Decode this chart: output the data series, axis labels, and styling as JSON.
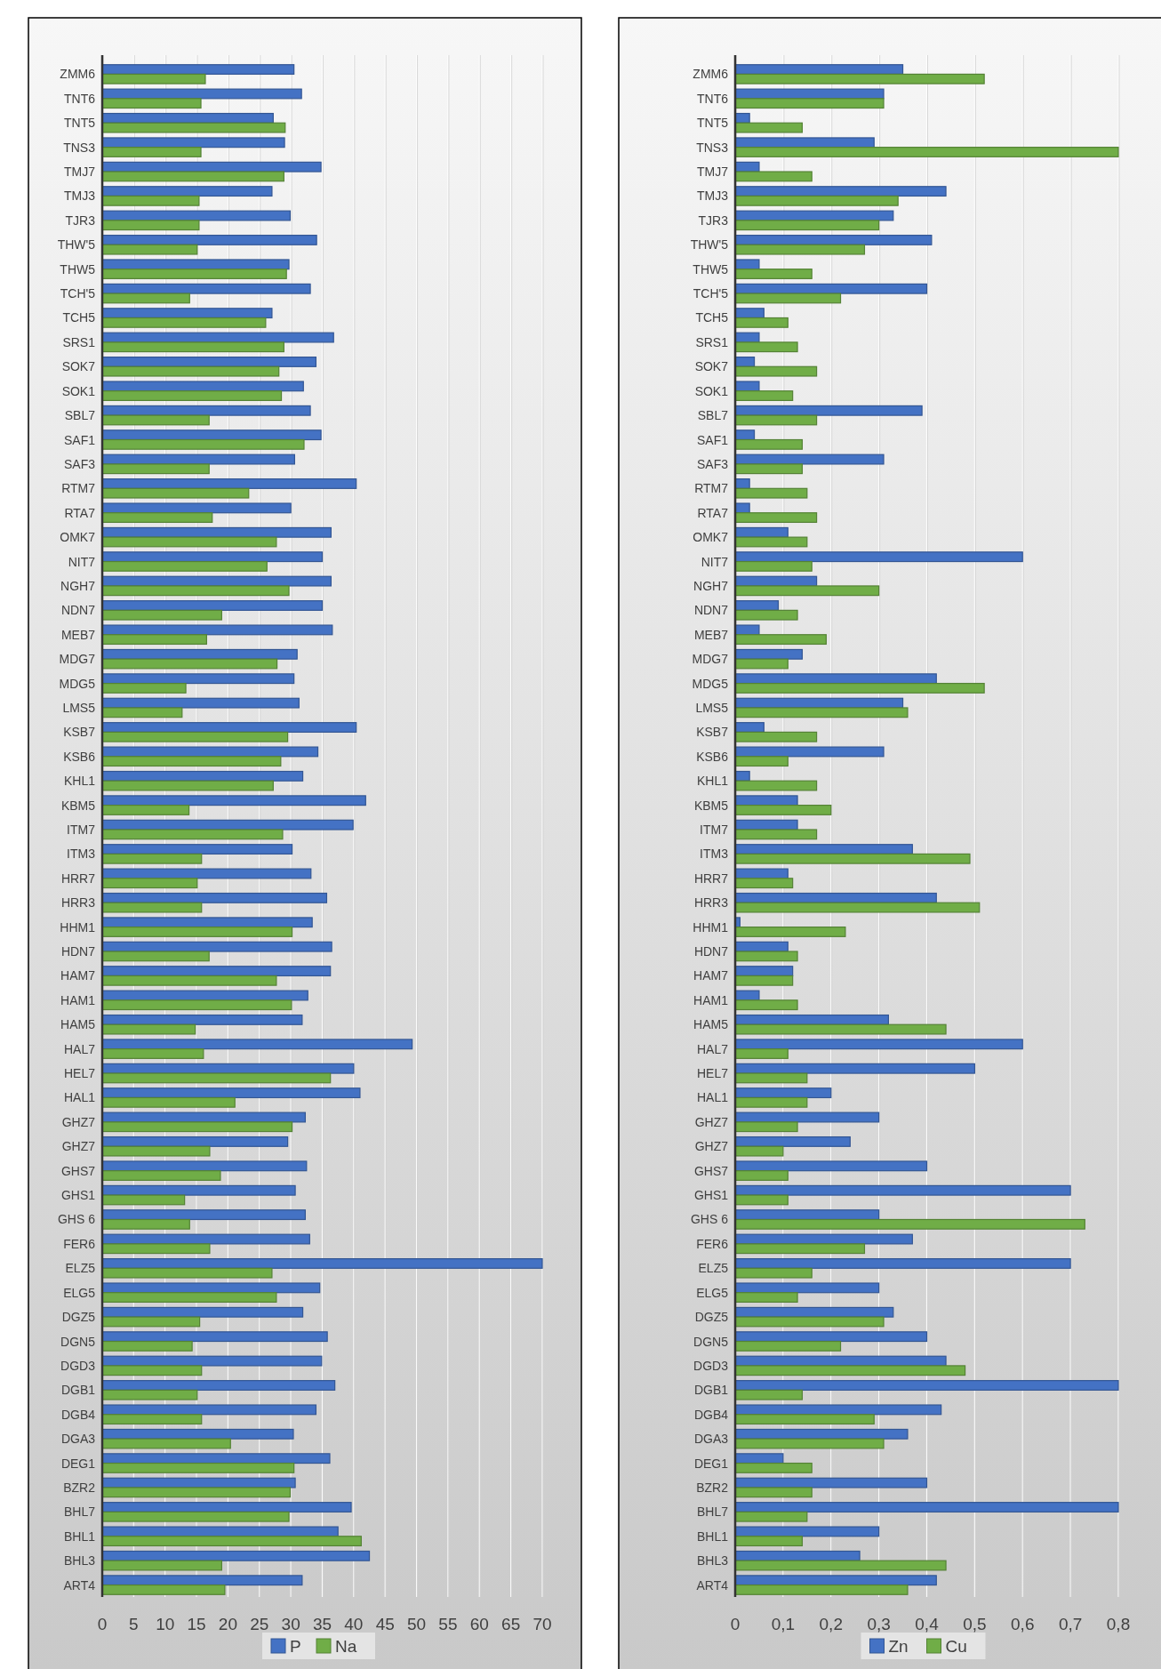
{
  "chart_data": [
    {
      "type": "bar",
      "orientation": "horizontal",
      "grid": "x",
      "legend": "bottom",
      "categories": [
        "ZMM6",
        "TNT6",
        "TNT5",
        "TNS3",
        "TMJ7",
        "TMJ3",
        "TJR3",
        "THW'5",
        "THW5",
        "TCH'5",
        "TCH5",
        "SRS1",
        "SOK7",
        "SOK1",
        "SBL7",
        "SAF1",
        "SAF3",
        "RTM7",
        "RTA7",
        "OMK7",
        "NIT7",
        "NGH7",
        "NDN7",
        "MEB7",
        "MDG7",
        "MDG5",
        "LMS5",
        "KSB7",
        "KSB6",
        "KHL1",
        "KBM5",
        "ITM7",
        "ITM3",
        "HRR7",
        "HRR3",
        "HHM1",
        "HDN7",
        "HAM7",
        "HAM1",
        "HAM5",
        "HAL7",
        "HEL7",
        "HAL1",
        "GHZ7",
        "GHZ7",
        "GHS7",
        "GHS1",
        "GHS 6",
        "FER6",
        "ELZ5",
        "ELG5",
        "DGZ5",
        "DGN5",
        "DGD3",
        "DGB1",
        "DGB4",
        "DGA3",
        "DEG1",
        "BZR2",
        "BHL7",
        "BHL1",
        "BHL3",
        "ART4"
      ],
      "series": [
        {
          "name": "P",
          "color": "#4472c4",
          "values": [
            30.5,
            31.7,
            27.2,
            29.0,
            34.8,
            27.0,
            29.9,
            34.1,
            29.7,
            33.1,
            27.0,
            36.8,
            34.0,
            32.0,
            33.1,
            34.8,
            30.6,
            40.4,
            30.0,
            36.4,
            35.0,
            36.4,
            35.0,
            36.6,
            31.0,
            30.5,
            31.3,
            40.4,
            34.3,
            31.9,
            41.9,
            39.9,
            30.2,
            33.2,
            35.7,
            33.4,
            36.5,
            36.3,
            32.7,
            31.8,
            49.3,
            40.0,
            41.0,
            32.3,
            29.5,
            32.5,
            30.7,
            32.3,
            33.0,
            70.0,
            34.6,
            31.9,
            35.8,
            34.9,
            37.0,
            34.0,
            30.4,
            36.2,
            30.7,
            39.6,
            37.5,
            42.5,
            31.8
          ]
        },
        {
          "name": "Na",
          "color": "#70ad47",
          "values": [
            16.4,
            15.7,
            29.1,
            15.7,
            28.9,
            15.4,
            15.4,
            15.1,
            29.3,
            13.9,
            26.0,
            28.9,
            28.1,
            28.5,
            17.0,
            32.1,
            17.0,
            23.3,
            17.5,
            27.7,
            26.2,
            29.7,
            19.0,
            16.6,
            27.8,
            13.3,
            12.7,
            29.5,
            28.4,
            27.2,
            13.8,
            28.7,
            15.8,
            15.1,
            15.8,
            30.2,
            17.0,
            27.7,
            30.1,
            14.8,
            16.1,
            36.3,
            21.1,
            30.2,
            17.1,
            18.8,
            13.1,
            13.9,
            17.1,
            27.0,
            27.7,
            15.5,
            14.3,
            15.8,
            15.1,
            15.8,
            20.4,
            30.5,
            29.9,
            29.7,
            41.2,
            19.0,
            19.5
          ]
        }
      ],
      "xlim": [
        0,
        70
      ],
      "xticks": [
        0,
        5,
        10,
        15,
        20,
        25,
        30,
        35,
        40,
        45,
        50,
        55,
        60,
        65,
        70
      ]
    },
    {
      "type": "bar",
      "orientation": "horizontal",
      "grid": "x",
      "legend": "bottom",
      "categories": [
        "ZMM6",
        "TNT6",
        "TNT5",
        "TNS3",
        "TMJ7",
        "TMJ3",
        "TJR3",
        "THW'5",
        "THW5",
        "TCH'5",
        "TCH5",
        "SRS1",
        "SOK7",
        "SOK1",
        "SBL7",
        "SAF1",
        "SAF3",
        "RTM7",
        "RTA7",
        "OMK7",
        "NIT7",
        "NGH7",
        "NDN7",
        "MEB7",
        "MDG7",
        "MDG5",
        "LMS5",
        "KSB7",
        "KSB6",
        "KHL1",
        "KBM5",
        "ITM7",
        "ITM3",
        "HRR7",
        "HRR3",
        "HHM1",
        "HDN7",
        "HAM7",
        "HAM1",
        "HAM5",
        "HAL7",
        "HEL7",
        "HAL1",
        "GHZ7",
        "GHZ7",
        "GHS7",
        "GHS1",
        "GHS 6",
        "FER6",
        "ELZ5",
        "ELG5",
        "DGZ5",
        "DGN5",
        "DGD3",
        "DGB1",
        "DGB4",
        "DGA3",
        "DEG1",
        "BZR2",
        "BHL7",
        "BHL1",
        "BHL3",
        "ART4"
      ],
      "series": [
        {
          "name": "Zn",
          "color": "#4472c4",
          "values": [
            0.35,
            0.31,
            0.03,
            0.29,
            0.05,
            0.44,
            0.33,
            0.41,
            0.05,
            0.4,
            0.06,
            0.05,
            0.04,
            0.05,
            0.39,
            0.04,
            0.31,
            0.03,
            0.03,
            0.11,
            0.6,
            0.17,
            0.09,
            0.05,
            0.14,
            0.42,
            0.35,
            0.06,
            0.31,
            0.03,
            0.13,
            0.13,
            0.37,
            0.11,
            0.42,
            0.01,
            0.11,
            0.12,
            0.05,
            0.32,
            0.6,
            0.5,
            0.2,
            0.3,
            0.24,
            0.4,
            0.7,
            0.3,
            0.37,
            0.7,
            0.3,
            0.33,
            0.4,
            0.44,
            0.8,
            0.43,
            0.36,
            0.1,
            0.4,
            0.8,
            0.3,
            0.26,
            0.42
          ]
        },
        {
          "name": "Cu",
          "color": "#70ad47",
          "values": [
            0.52,
            0.31,
            0.14,
            0.8,
            0.16,
            0.34,
            0.3,
            0.27,
            0.16,
            0.22,
            0.11,
            0.13,
            0.17,
            0.12,
            0.17,
            0.14,
            0.14,
            0.15,
            0.17,
            0.15,
            0.16,
            0.3,
            0.13,
            0.19,
            0.11,
            0.52,
            0.36,
            0.17,
            0.11,
            0.17,
            0.2,
            0.17,
            0.49,
            0.12,
            0.51,
            0.23,
            0.13,
            0.12,
            0.13,
            0.44,
            0.11,
            0.15,
            0.15,
            0.13,
            0.1,
            0.11,
            0.11,
            0.73,
            0.27,
            0.16,
            0.13,
            0.31,
            0.22,
            0.48,
            0.14,
            0.29,
            0.31,
            0.16,
            0.16,
            0.15,
            0.14,
            0.44,
            0.36
          ]
        }
      ],
      "xlim": [
        0,
        0.8
      ],
      "xticks": [
        0,
        {
          "value": 0.1,
          "label": "0,1"
        },
        {
          "value": 0.2,
          "label": "0,2"
        },
        {
          "value": 0.3,
          "label": "0,3"
        },
        {
          "value": 0.4,
          "label": "0,4"
        },
        {
          "value": 0.5,
          "label": "0,5"
        },
        {
          "value": 0.6,
          "label": "0,6"
        },
        {
          "value": 0.7,
          "label": "0,7"
        },
        {
          "value": 0.8,
          "label": "0,8"
        }
      ]
    }
  ]
}
